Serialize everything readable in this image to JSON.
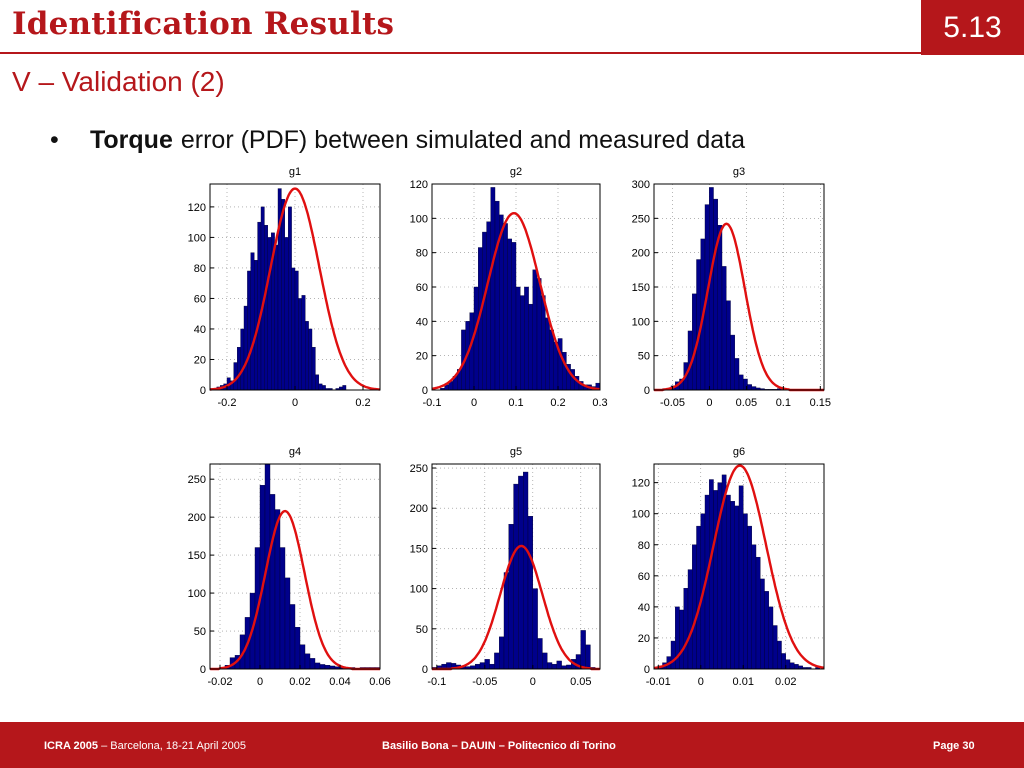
{
  "header": {
    "title": "Identification Results",
    "slide_number": "5.13",
    "subtitle": "V – Validation (2)"
  },
  "bullet": {
    "bold_text": "Torque",
    "text": "error (PDF) between simulated and measured data"
  },
  "footer": {
    "conference": "ICRA 2005",
    "location": "– Barcelona, 18-21 April 2005",
    "authors": "Basilio Bona –  DAUIN –  Politecnico di Torino",
    "page": "Page 30"
  },
  "colors": {
    "accent": "#b5171b",
    "bars": "#00008b",
    "curve": "#e01010"
  },
  "chart_data": [
    {
      "type": "bar",
      "title": "g1",
      "grid": true,
      "xlim": [
        -0.25,
        0.25
      ],
      "ylim": [
        0,
        135
      ],
      "xticks": [
        {
          "v": -0.2,
          "label": "-0.2"
        },
        {
          "v": 0,
          "label": "0"
        },
        {
          "v": 0.2,
          "label": "0.2"
        }
      ],
      "yticks": [
        {
          "v": 0,
          "label": "0"
        },
        {
          "v": 20,
          "label": "20"
        },
        {
          "v": 40,
          "label": "40"
        },
        {
          "v": 60,
          "label": "60"
        },
        {
          "v": 80,
          "label": "80"
        },
        {
          "v": 100,
          "label": "100"
        },
        {
          "v": 120,
          "label": "120"
        }
      ],
      "bins": {
        "start": -0.25,
        "width": 0.01
      },
      "values": [
        1,
        1,
        2,
        3,
        4,
        8,
        6,
        18,
        28,
        40,
        55,
        78,
        90,
        85,
        110,
        120,
        108,
        100,
        103,
        95,
        132,
        125,
        100,
        120,
        80,
        78,
        60,
        62,
        45,
        40,
        28,
        10,
        4,
        3,
        1,
        1,
        0,
        1,
        2,
        3
      ],
      "fit": {
        "mean": 0.0,
        "sd": 0.072,
        "peak": 132
      }
    },
    {
      "type": "bar",
      "title": "g2",
      "grid": true,
      "xlim": [
        -0.1,
        0.3
      ],
      "ylim": [
        0,
        120
      ],
      "xticks": [
        {
          "v": -0.1,
          "label": "-0.1"
        },
        {
          "v": 0,
          "label": "0"
        },
        {
          "v": 0.1,
          "label": "0.1"
        },
        {
          "v": 0.2,
          "label": "0.2"
        },
        {
          "v": 0.3,
          "label": "0.3"
        }
      ],
      "yticks": [
        {
          "v": 0,
          "label": "0"
        },
        {
          "v": 20,
          "label": "20"
        },
        {
          "v": 40,
          "label": "40"
        },
        {
          "v": 60,
          "label": "60"
        },
        {
          "v": 80,
          "label": "80"
        },
        {
          "v": 100,
          "label": "100"
        },
        {
          "v": 120,
          "label": "120"
        }
      ],
      "bins": {
        "start": -0.1,
        "width": 0.01
      },
      "values": [
        0,
        0,
        1,
        3,
        5,
        8,
        12,
        35,
        40,
        45,
        60,
        83,
        92,
        98,
        118,
        110,
        102,
        97,
        88,
        86,
        60,
        55,
        60,
        50,
        70,
        65,
        55,
        42,
        35,
        28,
        30,
        22,
        15,
        12,
        8,
        5,
        3,
        3,
        2,
        4
      ],
      "fit": {
        "mean": 0.095,
        "sd": 0.062,
        "peak": 103
      }
    },
    {
      "type": "bar",
      "title": "g3",
      "grid": true,
      "xlim": [
        -0.075,
        0.155
      ],
      "ylim": [
        0,
        300
      ],
      "xticks": [
        {
          "v": -0.05,
          "label": "-0.05"
        },
        {
          "v": 0,
          "label": "0"
        },
        {
          "v": 0.05,
          "label": "0.05"
        },
        {
          "v": 0.1,
          "label": "0.1"
        },
        {
          "v": 0.15,
          "label": "0.15"
        }
      ],
      "yticks": [
        {
          "v": 0,
          "label": "0"
        },
        {
          "v": 50,
          "label": "50"
        },
        {
          "v": 100,
          "label": "100"
        },
        {
          "v": 150,
          "label": "150"
        },
        {
          "v": 200,
          "label": "200"
        },
        {
          "v": 250,
          "label": "250"
        },
        {
          "v": 300,
          "label": "300"
        }
      ],
      "bins": {
        "start": -0.075,
        "width": 0.00575
      },
      "values": [
        1,
        0,
        2,
        1,
        6,
        12,
        16,
        40,
        86,
        140,
        190,
        220,
        270,
        295,
        278,
        240,
        180,
        130,
        80,
        46,
        22,
        16,
        8,
        5,
        3,
        2,
        1,
        1,
        1,
        2
      ],
      "fit": {
        "mean": 0.023,
        "sd": 0.025,
        "peak": 242
      }
    },
    {
      "type": "bar",
      "title": "g4",
      "grid": true,
      "xlim": [
        -0.025,
        0.06
      ],
      "ylim": [
        0,
        270
      ],
      "xticks": [
        {
          "v": -0.02,
          "label": "-0.02"
        },
        {
          "v": 0,
          "label": "0"
        },
        {
          "v": 0.02,
          "label": "0.02"
        },
        {
          "v": 0.04,
          "label": "0.04"
        },
        {
          "v": 0.06,
          "label": "0.06"
        }
      ],
      "yticks": [
        {
          "v": 0,
          "label": "0"
        },
        {
          "v": 50,
          "label": "50"
        },
        {
          "v": 100,
          "label": "100"
        },
        {
          "v": 150,
          "label": "150"
        },
        {
          "v": 200,
          "label": "200"
        },
        {
          "v": 250,
          "label": "250"
        }
      ],
      "bins": {
        "start": -0.025,
        "width": 0.0025
      },
      "values": [
        0,
        0,
        2,
        5,
        15,
        18,
        45,
        68,
        100,
        160,
        242,
        270,
        230,
        210,
        160,
        120,
        85,
        55,
        32,
        20,
        14,
        8,
        6,
        5,
        4,
        3,
        3,
        2,
        2,
        1,
        2,
        2,
        2,
        2
      ],
      "fit": {
        "mean": 0.0125,
        "sd": 0.0098,
        "peak": 208
      }
    },
    {
      "type": "bar",
      "title": "g5",
      "grid": true,
      "xlim": [
        -0.105,
        0.07
      ],
      "ylim": [
        0,
        255
      ],
      "xticks": [
        {
          "v": -0.1,
          "label": "-0.1"
        },
        {
          "v": -0.05,
          "label": "-0.05"
        },
        {
          "v": 0,
          "label": "0"
        },
        {
          "v": 0.05,
          "label": "0.05"
        }
      ],
      "yticks": [
        {
          "v": 0,
          "label": "0"
        },
        {
          "v": 50,
          "label": "50"
        },
        {
          "v": 100,
          "label": "100"
        },
        {
          "v": 150,
          "label": "150"
        },
        {
          "v": 200,
          "label": "200"
        },
        {
          "v": 250,
          "label": "250"
        }
      ],
      "bins": {
        "start": -0.105,
        "width": 0.005
      },
      "values": [
        2,
        4,
        6,
        8,
        7,
        5,
        4,
        3,
        4,
        6,
        8,
        12,
        6,
        20,
        40,
        120,
        180,
        230,
        240,
        245,
        190,
        100,
        38,
        20,
        8,
        6,
        10,
        4,
        5,
        12,
        18,
        48,
        30,
        2,
        1
      ],
      "fit": {
        "mean": -0.012,
        "sd": 0.022,
        "peak": 153
      }
    },
    {
      "type": "bar",
      "title": "g6",
      "grid": true,
      "xlim": [
        -0.011,
        0.029
      ],
      "ylim": [
        0,
        132
      ],
      "xticks": [
        {
          "v": -0.01,
          "label": "-0.01"
        },
        {
          "v": 0,
          "label": "0"
        },
        {
          "v": 0.01,
          "label": "0.01"
        },
        {
          "v": 0.02,
          "label": "0.02"
        }
      ],
      "yticks": [
        {
          "v": 0,
          "label": "0"
        },
        {
          "v": 20,
          "label": "20"
        },
        {
          "v": 40,
          "label": "40"
        },
        {
          "v": 60,
          "label": "60"
        },
        {
          "v": 80,
          "label": "80"
        },
        {
          "v": 100,
          "label": "100"
        },
        {
          "v": 120,
          "label": "120"
        }
      ],
      "bins": {
        "start": -0.011,
        "width": 0.001
      },
      "values": [
        0,
        2,
        4,
        8,
        18,
        40,
        38,
        52,
        64,
        80,
        92,
        100,
        112,
        122,
        115,
        120,
        125,
        112,
        108,
        105,
        118,
        100,
        92,
        80,
        72,
        58,
        50,
        40,
        28,
        18,
        10,
        6,
        4,
        3,
        2,
        1,
        1,
        0,
        1,
        0
      ],
      "fit": {
        "mean": 0.0092,
        "sd": 0.0062,
        "peak": 131
      }
    }
  ]
}
